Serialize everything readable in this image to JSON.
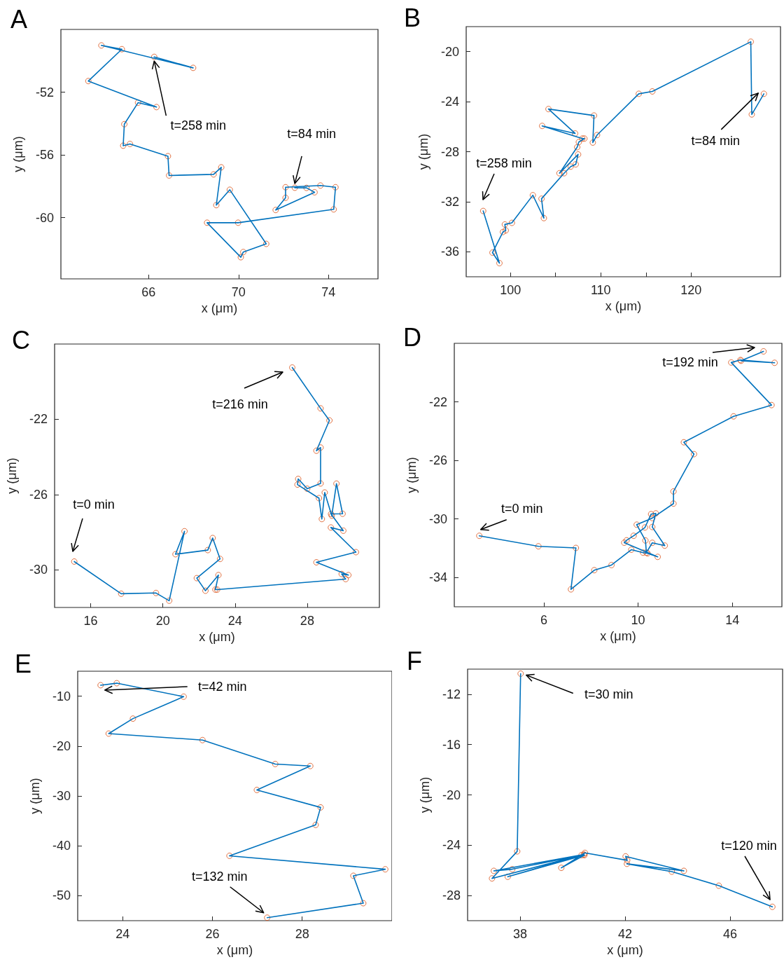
{
  "chart_data": [
    {
      "type": "line",
      "title": "A",
      "xlabel": "x (μm)",
      "ylabel": "y (μm)",
      "xlim": [
        62.1,
        76.2
      ],
      "ylim": [
        -63.9,
        -48
      ],
      "xticks": [
        66,
        70,
        74
      ],
      "yticks": [
        -60,
        -56,
        -52
      ],
      "series": [
        {
          "type": "line",
          "color": "#0072bd",
          "marker": "none",
          "x": [
            72.5,
            73.02,
            73.38,
            71.65,
            72.09,
            72.09,
            73.64,
            74.31,
            74.23,
            69.98,
            68.6,
            70.1,
            70.21,
            71.23,
            69.61,
            69.01,
            69.23,
            68.89,
            66.91,
            66.86,
            65.17,
            64.87,
            64.92,
            65.53,
            66.35,
            63.32,
            64.81,
            63.9,
            67.98,
            66.25
          ],
          "values": [
            -58.09,
            -58.1,
            -58.38,
            -59.51,
            -58.73,
            -58.06,
            -57.95,
            -58.06,
            -59.47,
            -60.32,
            -60.32,
            -62.52,
            -62.19,
            -61.67,
            -58.22,
            -59.2,
            -56.79,
            -57.24,
            -57.31,
            -56.08,
            -55.3,
            -55.41,
            -54.04,
            -52.67,
            -52.95,
            -51.29,
            -49.26,
            -49.02,
            -50.45,
            -49.75
          ]
        },
        {
          "type": "scatter",
          "color": "#d95319",
          "marker": "circle",
          "x": [
            72.5,
            73.02,
            73.38,
            71.65,
            72.09,
            72.09,
            73.64,
            74.31,
            74.23,
            69.98,
            68.6,
            70.1,
            70.21,
            71.23,
            69.61,
            69.01,
            69.23,
            68.89,
            66.91,
            66.86,
            65.17,
            64.87,
            64.92,
            65.53,
            66.35,
            63.32,
            64.81,
            63.9,
            67.98,
            66.25
          ],
          "values": [
            -58.09,
            -58.1,
            -58.38,
            -59.51,
            -58.73,
            -58.06,
            -57.95,
            -58.06,
            -59.47,
            -60.32,
            -60.32,
            -62.52,
            -62.19,
            -61.67,
            -58.22,
            -59.2,
            -56.79,
            -57.24,
            -57.31,
            -56.08,
            -55.3,
            -55.41,
            -54.04,
            -52.67,
            -52.95,
            -51.29,
            -49.26,
            -49.02,
            -50.45,
            -49.75
          ]
        }
      ],
      "annotations": [
        {
          "text": "t=84 min",
          "x": 72.5,
          "y": -58.09
        },
        {
          "text": "t=258 min",
          "x": 66.25,
          "y": -49.75
        }
      ]
    },
    {
      "type": "line",
      "title": "B",
      "xlabel": "x (μm)",
      "ylabel": "y (μm)",
      "xlim": [
        95.1,
        129.9
      ],
      "ylim": [
        -38,
        -18
      ],
      "xticks": [
        100,
        {
          "value": 105,
          "label": null
        },
        110,
        {
          "value": 115,
          "label": null
        },
        120
      ],
      "yticks": [
        -36,
        -32,
        -28,
        -24,
        -20
      ],
      "series": [
        {
          "type": "line",
          "color": "#0072bd",
          "marker": "none",
          "x": [
            128.06,
            126.72,
            126.61,
            115.71,
            114.21,
            109.59,
            109.12,
            109.25,
            104.21,
            107.16,
            103.51,
            107.96,
            108.19,
            107.57,
            107.39,
            105.43,
            107.49,
            107.23,
            106.67,
            105.94,
            103.44,
            103.7,
            102.48,
            100.16,
            99.38,
            99.48,
            99.17,
            98.01,
            98.78,
            96.98
          ],
          "values": [
            -23.37,
            -25.02,
            -19.21,
            -23.18,
            -23.37,
            -26.67,
            -27.27,
            -25.11,
            -24.59,
            -26.54,
            -25.94,
            -26.95,
            -26.95,
            -27.23,
            -27.64,
            -29.72,
            -28.22,
            -29.01,
            -29.19,
            -29.72,
            -31.76,
            -33.31,
            -31.48,
            -33.69,
            -33.82,
            -34.29,
            -34.42,
            -36.07,
            -36.91,
            -32.74
          ]
        },
        {
          "type": "scatter",
          "color": "#d95319",
          "marker": "circle",
          "x": [
            128.06,
            126.72,
            126.61,
            115.71,
            114.21,
            109.59,
            109.12,
            109.25,
            104.21,
            107.16,
            103.51,
            107.96,
            108.19,
            107.57,
            107.39,
            105.43,
            107.49,
            107.23,
            106.67,
            105.94,
            103.44,
            103.7,
            102.48,
            100.16,
            99.38,
            99.48,
            99.17,
            98.01,
            98.78,
            96.98
          ],
          "values": [
            -23.37,
            -25.02,
            -19.21,
            -23.18,
            -23.37,
            -26.67,
            -27.27,
            -25.11,
            -24.59,
            -26.54,
            -25.94,
            -26.95,
            -26.95,
            -27.23,
            -27.64,
            -29.72,
            -28.22,
            -29.01,
            -29.19,
            -29.72,
            -31.76,
            -33.31,
            -31.48,
            -33.69,
            -33.82,
            -34.29,
            -34.42,
            -36.07,
            -36.91,
            -32.74
          ]
        }
      ],
      "annotations": [
        {
          "text": "t=84 min",
          "x": 128.06,
          "y": -23.37
        },
        "t=258 min"
      ]
    },
    {
      "type": "line",
      "title": "C",
      "xlabel": "x (μm)",
      "ylabel": "y (μm)",
      "xlim": [
        14,
        32
      ],
      "ylim": [
        -32,
        -18
      ],
      "xticks": [
        16,
        20,
        24,
        28
      ],
      "yticks": [
        -30,
        -26,
        -22
      ],
      "series": [
        {
          "type": "line",
          "color": "#0072bd",
          "marker": "none",
          "x": [
            15.09,
            17.69,
            19.62,
            20.35,
            21.2,
            20.7,
            22.49,
            22.76,
            23.17,
            21.88,
            22.36,
            23.08,
            22.91,
            23.01,
            30.13,
            29.91,
            30.28,
            28.51,
            30.7,
            29.31,
            30,
            29.32,
            29.96,
            29.62,
            29.36,
            28.97,
            28.81,
            28.65,
            27.46,
            27.5,
            28,
            28.74,
            28.74,
            28.51,
            29.23,
            28.74,
            27.17
          ],
          "values": [
            -29.56,
            -31.27,
            -31.23,
            -31.64,
            -27.95,
            -29.17,
            -28.95,
            -28.31,
            -29.42,
            -30.44,
            -31.11,
            -30.28,
            -31.05,
            -31.05,
            -30.49,
            -30.22,
            -30.28,
            -29.6,
            -29.06,
            -27.75,
            -27.92,
            -27.03,
            -27.02,
            -25.42,
            -27.12,
            -25.89,
            -27.3,
            -26.19,
            -25.47,
            -25.17,
            -25.69,
            -25.41,
            -23.5,
            -23.67,
            -22.06,
            -21.42,
            -19.25
          ]
        },
        {
          "type": "scatter",
          "color": "#d95319",
          "marker": "circle",
          "x": [
            15.09,
            17.69,
            19.62,
            20.35,
            21.2,
            20.7,
            22.49,
            22.76,
            23.17,
            21.88,
            22.36,
            23.08,
            22.91,
            23.01,
            30.13,
            29.91,
            30.28,
            28.51,
            30.7,
            29.31,
            30,
            29.32,
            29.96,
            29.62,
            29.36,
            28.97,
            28.81,
            28.65,
            27.46,
            27.5,
            28,
            28.74,
            28.74,
            28.51,
            29.23,
            28.74,
            27.17
          ],
          "values": [
            -29.56,
            -31.27,
            -31.23,
            -31.64,
            -27.95,
            -29.17,
            -28.95,
            -28.31,
            -29.42,
            -30.44,
            -31.11,
            -30.28,
            -31.05,
            -31.05,
            -30.49,
            -30.22,
            -30.28,
            -29.6,
            -29.06,
            -27.75,
            -27.92,
            -27.03,
            -27.02,
            -25.42,
            -27.12,
            -25.89,
            -27.3,
            -26.19,
            -25.47,
            -25.17,
            -25.69,
            -25.41,
            -23.5,
            -23.67,
            -22.06,
            -21.42,
            -19.25
          ]
        }
      ],
      "annotations": [
        "t=0 min",
        "t=216 min"
      ]
    },
    {
      "type": "line",
      "title": "D",
      "xlabel": "x (μm)",
      "ylabel": "y (μm)",
      "xlim": [
        2.2,
        16.1
      ],
      "ylim": [
        -36,
        -18
      ],
      "xticks": [
        6,
        10,
        14
      ],
      "yticks": [
        -34,
        -30,
        -26,
        -22
      ],
      "series": [
        {
          "type": "line",
          "color": "#0072bd",
          "marker": "none",
          "x": [
            3.26,
            5.77,
            7.36,
            7.15,
            8.14,
            8.87,
            9.71,
            10.21,
            10.4,
            10.83,
            9.41,
            9.51,
            9.81,
            10.29,
            10.55,
            10.75,
            10.6,
            11.13,
            10.6,
            10.35,
            10.31,
            9.94,
            10.6,
            11.5,
            11.5,
            12.37,
            11.94,
            14.05,
            15.66,
            13.95,
            14.34,
            15.79,
            14.37,
            15.32
          ],
          "values": [
            -31.15,
            -31.87,
            -31.98,
            -34.81,
            -33.5,
            -33.15,
            -32.1,
            -32.3,
            -32.35,
            -32.59,
            -31.62,
            -31.46,
            -31.15,
            -30.58,
            -29.67,
            -29.62,
            -30.55,
            -31.82,
            -31.63,
            -32.3,
            -31.47,
            -30.39,
            -29.94,
            -28.95,
            -28.12,
            -25.57,
            -24.76,
            -22.99,
            -22.22,
            -19.31,
            -19.14,
            -19.33,
            -19.19,
            -18.55
          ]
        },
        {
          "type": "scatter",
          "color": "#d95319",
          "marker": "circle",
          "x": [
            3.26,
            5.77,
            7.36,
            7.15,
            8.14,
            8.87,
            9.71,
            10.21,
            10.4,
            10.83,
            9.41,
            9.51,
            9.81,
            10.29,
            10.55,
            10.75,
            10.6,
            11.13,
            10.6,
            10.35,
            10.31,
            9.94,
            10.6,
            11.5,
            11.5,
            12.37,
            11.94,
            14.05,
            15.66,
            13.95,
            14.34,
            15.79,
            14.37,
            15.32
          ],
          "values": [
            -31.15,
            -31.87,
            -31.98,
            -34.81,
            -33.5,
            -33.15,
            -32.1,
            -32.3,
            -32.35,
            -32.59,
            -31.62,
            -31.46,
            -31.15,
            -30.58,
            -29.67,
            -29.62,
            -30.55,
            -31.82,
            -31.63,
            -32.3,
            -31.47,
            -30.39,
            -29.94,
            -28.95,
            -28.12,
            -25.57,
            -24.76,
            -22.99,
            -22.22,
            -19.31,
            -19.14,
            -19.33,
            -19.19,
            -18.55
          ]
        }
      ],
      "annotations": [
        {
          "text": "t=0 min",
          "x": 3.26,
          "y": -31.15
        },
        "t=192 min"
      ]
    },
    {
      "type": "line",
      "title": "E",
      "xlabel": "x (μm)",
      "ylabel": "y (μm)",
      "xlim": [
        23,
        30
      ],
      "ylim": [
        -55,
        -5
      ],
      "xticks": [
        24,
        26,
        28
      ],
      "yticks": [
        -50,
        -40,
        -30,
        -20,
        -10
      ],
      "series": [
        {
          "type": "line",
          "color": "#0072bd",
          "marker": "none",
          "x": [
            23.51,
            23.87,
            25.36,
            24.23,
            23.69,
            25.78,
            27.4,
            28.18,
            26.99,
            28.41,
            28.3,
            26.38,
            29.85,
            29.14,
            29.36,
            27.22
          ],
          "values": [
            -7.8,
            -7.4,
            -10.1,
            -14.5,
            -17.5,
            -18.8,
            -23.6,
            -24,
            -28.8,
            -32.3,
            -35.8,
            -42,
            -44.7,
            -46,
            -51.5,
            -54.4
          ]
        },
        {
          "type": "scatter",
          "color": "#d95319",
          "marker": "circle",
          "x": [
            23.51,
            23.87,
            25.36,
            24.23,
            23.69,
            25.78,
            27.4,
            28.18,
            26.99,
            28.41,
            28.3,
            26.38,
            29.85,
            29.14,
            29.36,
            27.22
          ],
          "values": [
            -7.8,
            -7.4,
            -10.1,
            -14.5,
            -17.5,
            -18.8,
            -23.6,
            -24,
            -28.8,
            -32.3,
            -35.8,
            -42,
            -44.7,
            -46,
            -51.5,
            -54.4
          ]
        }
      ],
      "annotations": [
        {
          "text": "t=42 min",
          "x": 23.51,
          "y": -7.8
        },
        {
          "text": "t=132 min",
          "x": 27.22,
          "y": -54.4
        }
      ]
    },
    {
      "type": "line",
      "title": "F",
      "xlabel": "x (μm)",
      "ylabel": "y (μm)",
      "xlim": [
        36,
        48
      ],
      "ylim": [
        -30,
        -10
      ],
      "xticks": [
        38,
        42,
        46
      ],
      "yticks": [
        -28,
        -24,
        -20,
        -16,
        -12
      ],
      "series": [
        {
          "type": "line",
          "color": "#0072bd",
          "marker": "none",
          "x": [
            38.02,
            37.89,
            36.93,
            40.43,
            37,
            37.7,
            40.34,
            37.53,
            40.45,
            39.57,
            40.47,
            42.08,
            42.02,
            44.24,
            42.07,
            43.78,
            45.57,
            47.61
          ],
          "values": [
            -10.36,
            -24.49,
            -26.64,
            -24.74,
            -26.04,
            -25.91,
            -24.79,
            -26.51,
            -24.79,
            -25.8,
            -24.61,
            -25.2,
            -24.89,
            -26.04,
            -25.48,
            -26.1,
            -27.22,
            -28.9
          ]
        },
        {
          "type": "scatter",
          "color": "#d95319",
          "marker": "circle",
          "x": [
            38.02,
            37.89,
            36.93,
            40.43,
            37,
            37.7,
            40.34,
            37.53,
            40.45,
            39.57,
            40.47,
            42.08,
            42.02,
            44.24,
            42.07,
            43.78,
            45.57,
            47.61
          ],
          "values": [
            -10.36,
            -24.49,
            -26.64,
            -24.74,
            -26.04,
            -25.91,
            -24.79,
            -26.51,
            -24.79,
            -25.8,
            -24.61,
            -25.2,
            -24.89,
            -26.04,
            -25.48,
            -26.1,
            -27.22,
            -28.9
          ]
        }
      ],
      "annotations": [
        {
          "text": "t=30 min",
          "x": 38.02,
          "y": -10.36
        },
        "t=120 min"
      ]
    }
  ]
}
